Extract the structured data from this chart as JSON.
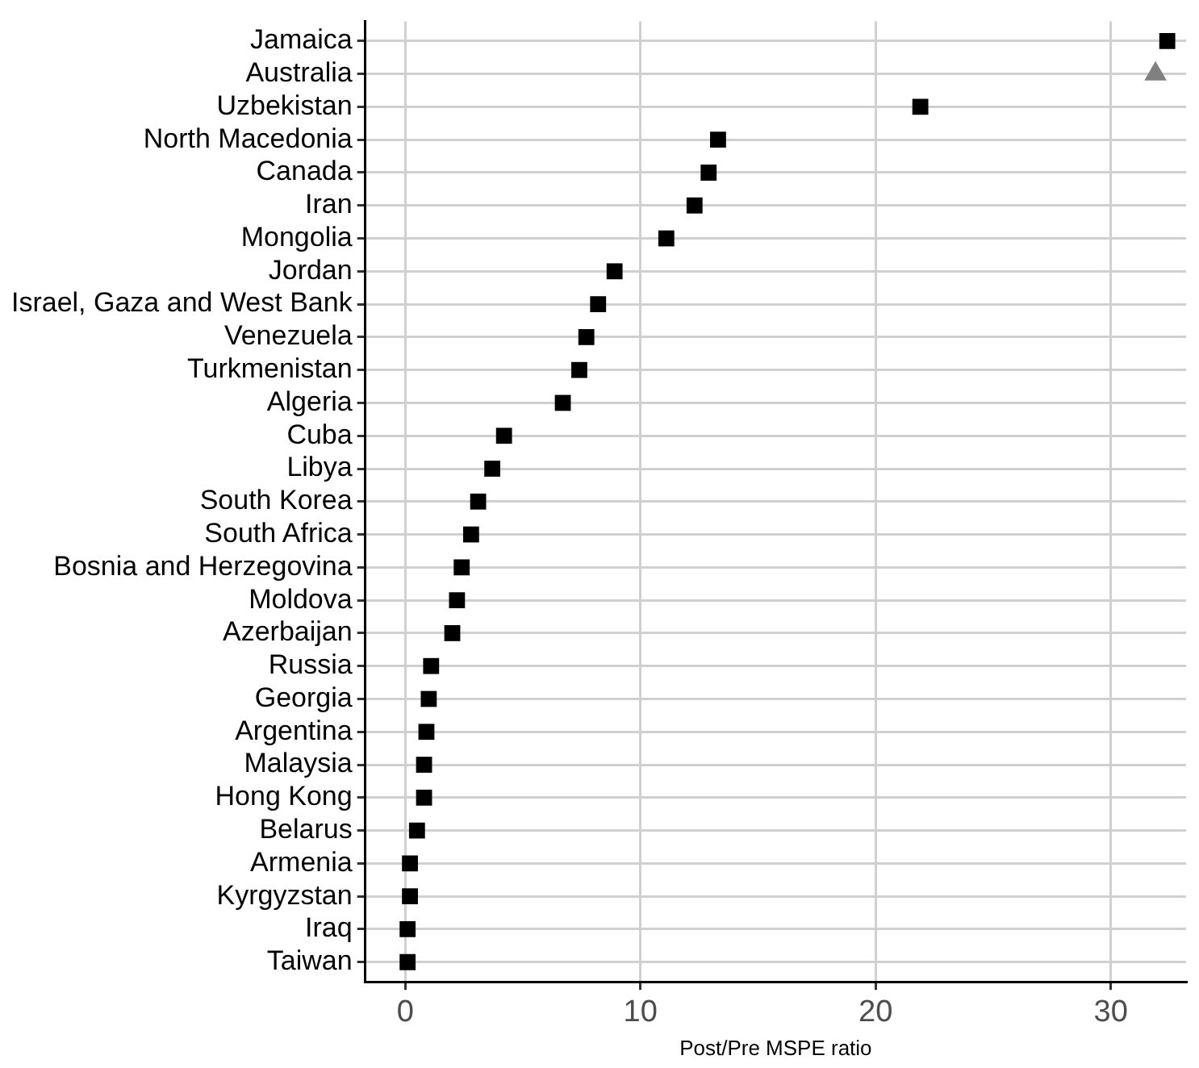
{
  "chart_data": {
    "type": "scatter",
    "xlabel": "Post/Pre MSPE ratio",
    "categories": [
      "Jamaica",
      "Australia",
      "Uzbekistan",
      "North Macedonia",
      "Canada",
      "Iran",
      "Mongolia",
      "Jordan",
      "Israel, Gaza and West Bank",
      "Venezuela",
      "Turkmenistan",
      "Algeria",
      "Cuba",
      "Libya",
      "South Korea",
      "South Africa",
      "Bosnia and Herzegovina",
      "Moldova",
      "Azerbaijan",
      "Russia",
      "Georgia",
      "Argentina",
      "Malaysia",
      "Hong Kong",
      "Belarus",
      "Armenia",
      "Kyrgyzstan",
      "Iraq",
      "Taiwan"
    ],
    "series": [
      {
        "color": "#000000",
        "marker": "square",
        "values": [
          32.4,
          null,
          21.9,
          13.3,
          12.9,
          12.3,
          11.1,
          8.9,
          8.2,
          7.7,
          7.4,
          6.7,
          4.2,
          3.7,
          3.1,
          2.8,
          2.4,
          2.2,
          2.0,
          1.1,
          1.0,
          0.9,
          0.8,
          0.8,
          0.5,
          0.2,
          0.2,
          0.1,
          0.1
        ]
      },
      {
        "color": "#808080",
        "marker": "triangle",
        "values": [
          null,
          31.9,
          null,
          null,
          null,
          null,
          null,
          null,
          null,
          null,
          null,
          null,
          null,
          null,
          null,
          null,
          null,
          null,
          null,
          null,
          null,
          null,
          null,
          null,
          null,
          null,
          null,
          null,
          null
        ]
      }
    ],
    "orientation": "horizontal",
    "xlim": [
      -1.7,
      33.2
    ],
    "xticks": [
      0,
      10,
      20,
      30
    ],
    "grid": true,
    "legend": false
  }
}
